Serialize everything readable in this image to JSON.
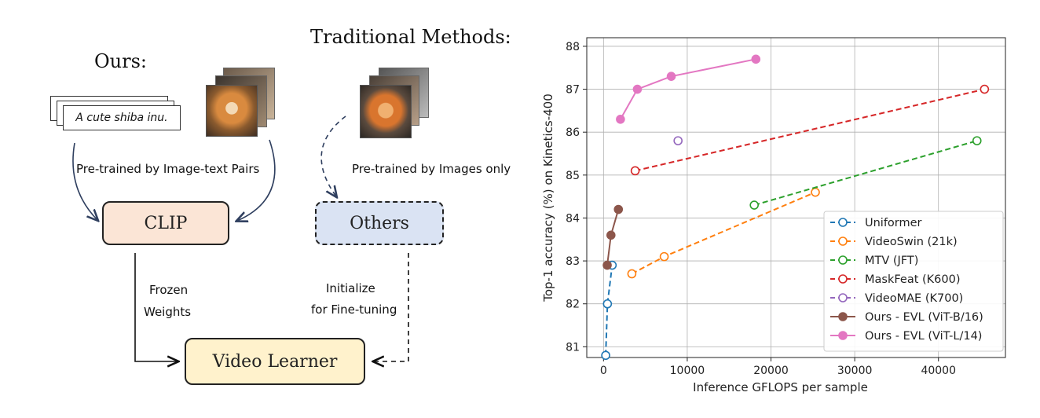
{
  "diagram": {
    "ours_title": "Ours:",
    "traditional_title": "Traditional Methods:",
    "caption_text": "A cute shiba inu.",
    "pretrained_pairs": "Pre-trained by Image-text Pairs",
    "pretrained_images": "Pre-trained by Images only",
    "clip_label": "CLIP",
    "others_label": "Others",
    "video_learner_label": "Video Learner",
    "frozen_line1": "Frozen",
    "frozen_line2": "Weights",
    "init_line1": "Initialize",
    "init_line2": "for Fine-tuning",
    "colors": {
      "clip_fill": "#fbe5d6",
      "others_fill": "#dae3f3",
      "video_fill": "#fff2cc",
      "arrow": "#2f3f5f"
    }
  },
  "chart_data": {
    "type": "line",
    "xlabel": "Inference GFLOPS per sample",
    "ylabel": "Top-1 accuracy (%) on Kinetics-400",
    "xlim": [
      -2000,
      48000
    ],
    "ylim": [
      80.75,
      88.2
    ],
    "xticks": [
      0,
      10000,
      20000,
      30000,
      40000
    ],
    "yticks": [
      81,
      82,
      83,
      84,
      85,
      86,
      87,
      88
    ],
    "grid": true,
    "legend_position": "lower-right",
    "series": [
      {
        "name": "Uniformer",
        "color": "#1f77b4",
        "style": "dashed-open",
        "x": [
          260,
          470,
          1036
        ],
        "y": [
          80.8,
          82.0,
          82.9
        ]
      },
      {
        "name": "VideoSwin (21k)",
        "color": "#ff7f0e",
        "style": "dashed-open",
        "x": [
          3384,
          7248,
          25300
        ],
        "y": [
          82.7,
          83.1,
          84.6
        ]
      },
      {
        "name": "MTV (JFT)",
        "color": "#2ca02c",
        "style": "dashed-open",
        "x": [
          18000,
          44600
        ],
        "y": [
          84.3,
          85.8
        ]
      },
      {
        "name": "MaskFeat (K600)",
        "color": "#d62728",
        "style": "dashed-open",
        "x": [
          3780,
          45500
        ],
        "y": [
          85.1,
          87.0
        ]
      },
      {
        "name": "VideoMAE (K700)",
        "color": "#9467bd",
        "style": "dashed-open",
        "x": [
          8900
        ],
        "y": [
          85.8
        ]
      },
      {
        "name": "Ours - EVL (ViT-B/16)",
        "color": "#8c564b",
        "style": "solid-filled",
        "x": [
          444,
          888,
          1777
        ],
        "y": [
          82.9,
          83.6,
          84.2
        ]
      },
      {
        "name": "Ours - EVL (ViT-L/14)",
        "color": "#e377c2",
        "style": "solid-filled",
        "x": [
          2022,
          4044,
          8088,
          18196
        ],
        "y": [
          86.3,
          87.0,
          87.3,
          87.7
        ]
      }
    ]
  }
}
